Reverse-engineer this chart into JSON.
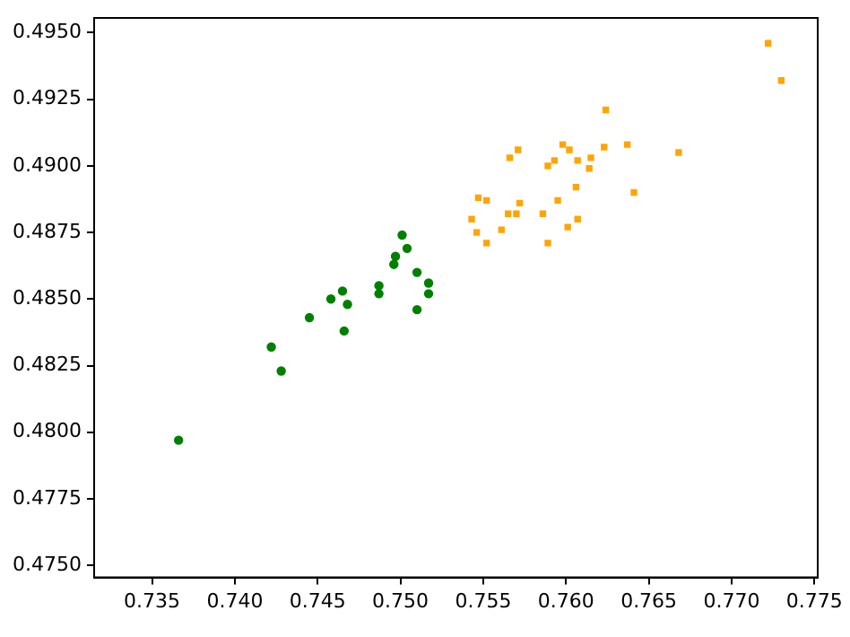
{
  "chart_data": {
    "type": "scatter",
    "grid": false,
    "xlim": [
      0.7315,
      0.7752
    ],
    "ylim": [
      0.47455,
      0.49555
    ],
    "xticks": [
      0.735,
      {
        "value": 0.74,
        "label": "0.740"
      },
      0.745,
      {
        "value": 0.75,
        "label": "0.750"
      },
      0.755,
      {
        "value": 0.76,
        "label": "0.760"
      },
      0.765,
      {
        "value": 0.77,
        "label": "0.770"
      },
      0.775
    ],
    "yticks": [
      {
        "value": 0.475,
        "label": "0.4750"
      },
      {
        "value": 0.4775,
        "label": "0.4775"
      },
      {
        "value": 0.48,
        "label": "0.4800"
      },
      {
        "value": 0.4825,
        "label": "0.4825"
      },
      {
        "value": 0.485,
        "label": "0.4850"
      },
      {
        "value": 0.4875,
        "label": "0.4875"
      },
      {
        "value": 0.49,
        "label": "0.4900"
      },
      {
        "value": 0.4925,
        "label": "0.4925"
      },
      {
        "value": 0.495,
        "label": "0.4950"
      }
    ],
    "series": [
      {
        "color": "#008000",
        "marker": "circle",
        "x": [
          0.7366,
          0.7422,
          0.7428,
          0.7445,
          0.7458,
          0.7465,
          0.7466,
          0.7468,
          0.7487,
          0.7487,
          0.7496,
          0.7497,
          0.7501,
          0.7504,
          0.751,
          0.751,
          0.7517,
          0.7517
        ],
        "values": [
          0.4797,
          0.4832,
          0.4823,
          0.4843,
          0.485,
          0.4853,
          0.4838,
          0.4848,
          0.4855,
          0.4852,
          0.4863,
          0.4866,
          0.4874,
          0.4869,
          0.486,
          0.4846,
          0.4856,
          0.4852
        ]
      },
      {
        "color": "#ffa500",
        "marker": "square",
        "x": [
          0.773,
          0.7722,
          0.7624,
          0.7566,
          0.7571,
          0.7598,
          0.7602,
          0.7623,
          0.7637,
          0.7668,
          0.7589,
          0.7593,
          0.7607,
          0.7615,
          0.7614,
          0.7606,
          0.7641,
          0.7547,
          0.7552,
          0.7572,
          0.7595,
          0.7543,
          0.7565,
          0.757,
          0.7586,
          0.7546,
          0.7561,
          0.7601,
          0.7607,
          0.7552,
          0.7589
        ],
        "values": [
          0.4932,
          0.4946,
          0.4921,
          0.4903,
          0.4906,
          0.4908,
          0.4906,
          0.4907,
          0.4908,
          0.4905,
          0.49,
          0.4902,
          0.4902,
          0.4903,
          0.4899,
          0.4892,
          0.489,
          0.4888,
          0.4887,
          0.4886,
          0.4887,
          0.488,
          0.4882,
          0.4882,
          0.4882,
          0.4875,
          0.4876,
          0.4877,
          0.488,
          0.4871,
          0.4871
        ]
      }
    ]
  }
}
